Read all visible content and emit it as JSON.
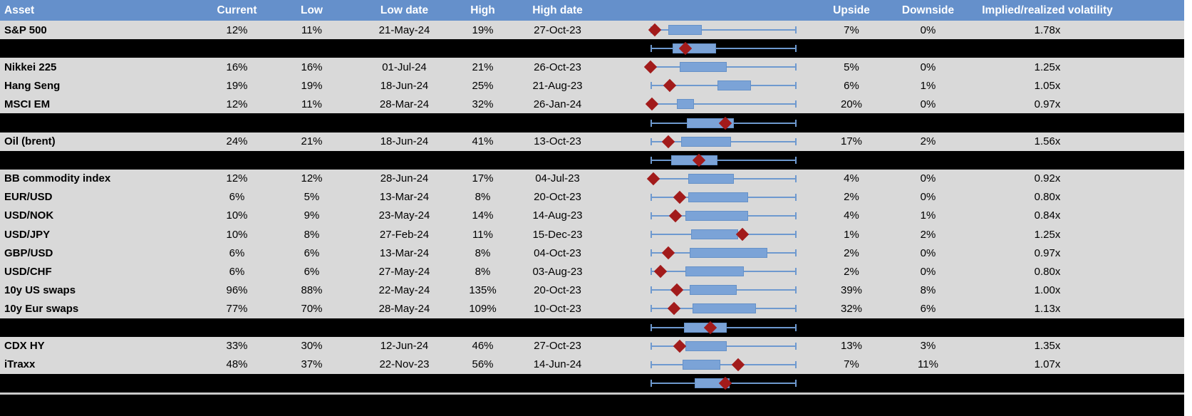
{
  "colors": {
    "header_bg": "#6590CB",
    "row_bg": "#D9D9D9",
    "band_bg": "#000000",
    "box_fill": "#7BA3D7",
    "box_border": "#6591C8",
    "whisker": "#6E99CF",
    "marker": "#A21B1B",
    "divider": "#C9C9C9",
    "text_header": "#FFFFFF",
    "text": "#000000"
  },
  "chart_data": {
    "type": "table",
    "note": "Implied volatility table; each row embeds a normalized horizontal box plot (whiskers = 52-week low..high span 0..1, box = interquartile range, red diamond = current level). Black group-summary rows show aggregate box plots only.",
    "columns": [
      "Asset",
      "Current",
      "Low",
      "Low date",
      "High",
      "High date",
      "",
      "Upside",
      "Downside",
      "Implied/realized volatility"
    ],
    "rows": [
      {
        "kind": "data",
        "asset": "S&P 500",
        "current": "12%",
        "low": "11%",
        "low_date": "21-May-24",
        "high": "19%",
        "high_date": "27-Oct-23",
        "upside": "7%",
        "downside": "0%",
        "implied_realized": "1.78x",
        "box": {
          "whisker": [
            0,
            1
          ],
          "box": [
            0.12,
            0.34
          ],
          "diamond": 0.03
        }
      },
      {
        "kind": "summary",
        "box": {
          "whisker": [
            0,
            1
          ],
          "box": [
            0.15,
            0.44
          ],
          "diamond": 0.24
        }
      },
      {
        "kind": "data",
        "asset": "Nikkei 225",
        "current": "16%",
        "low": "16%",
        "low_date": "01-Jul-24",
        "high": "21%",
        "high_date": "26-Oct-23",
        "upside": "5%",
        "downside": "0%",
        "implied_realized": "1.25x",
        "box": {
          "whisker": [
            0,
            1
          ],
          "box": [
            0.2,
            0.51
          ],
          "diamond": 0.0
        }
      },
      {
        "kind": "data",
        "asset": "Hang Seng",
        "current": "19%",
        "low": "19%",
        "low_date": "18-Jun-24",
        "high": "25%",
        "high_date": "21-Aug-23",
        "upside": "6%",
        "downside": "1%",
        "implied_realized": "1.05x",
        "box": {
          "whisker": [
            0,
            1
          ],
          "box": [
            0.46,
            0.68
          ],
          "diamond": 0.13
        }
      },
      {
        "kind": "data",
        "asset": "MSCI EM",
        "current": "12%",
        "low": "11%",
        "low_date": "28-Mar-24",
        "high": "32%",
        "high_date": "26-Jan-24",
        "upside": "20%",
        "downside": "0%",
        "implied_realized": "0.97x",
        "box": {
          "whisker": [
            0,
            1
          ],
          "box": [
            0.18,
            0.29
          ],
          "diamond": 0.01
        }
      },
      {
        "kind": "summary",
        "box": {
          "whisker": [
            0,
            1
          ],
          "box": [
            0.25,
            0.56
          ],
          "diamond": 0.51
        }
      },
      {
        "kind": "data",
        "asset": "Oil (brent)",
        "current": "24%",
        "low": "21%",
        "low_date": "18-Jun-24",
        "high": "41%",
        "high_date": "13-Oct-23",
        "upside": "17%",
        "downside": "2%",
        "implied_realized": "1.56x",
        "box": {
          "whisker": [
            0,
            1
          ],
          "box": [
            0.21,
            0.54
          ],
          "diamond": 0.12
        }
      },
      {
        "kind": "summary",
        "box": {
          "whisker": [
            0,
            1
          ],
          "box": [
            0.14,
            0.45
          ],
          "diamond": 0.33
        }
      },
      {
        "kind": "data",
        "asset": "BB commodity index",
        "current": "12%",
        "low": "12%",
        "low_date": "28-Jun-24",
        "high": "17%",
        "high_date": "04-Jul-23",
        "upside": "4%",
        "downside": "0%",
        "implied_realized": "0.92x",
        "box": {
          "whisker": [
            0,
            1
          ],
          "box": [
            0.26,
            0.56
          ],
          "diamond": 0.02
        }
      },
      {
        "kind": "data",
        "asset": "EUR/USD",
        "current": "6%",
        "low": "5%",
        "low_date": "13-Mar-24",
        "high": "8%",
        "high_date": "20-Oct-23",
        "upside": "2%",
        "downside": "0%",
        "implied_realized": "0.80x",
        "box": {
          "whisker": [
            0,
            1
          ],
          "box": [
            0.26,
            0.66
          ],
          "diamond": 0.2
        }
      },
      {
        "kind": "data",
        "asset": "USD/NOK",
        "current": "10%",
        "low": "9%",
        "low_date": "23-May-24",
        "high": "14%",
        "high_date": "14-Aug-23",
        "upside": "4%",
        "downside": "1%",
        "implied_realized": "0.84x",
        "box": {
          "whisker": [
            0,
            1
          ],
          "box": [
            0.24,
            0.66
          ],
          "diamond": 0.17
        }
      },
      {
        "kind": "data",
        "asset": "USD/JPY",
        "current": "10%",
        "low": "8%",
        "low_date": "27-Feb-24",
        "high": "11%",
        "high_date": "15-Dec-23",
        "upside": "1%",
        "downside": "2%",
        "implied_realized": "1.25x",
        "box": {
          "whisker": [
            0,
            1
          ],
          "box": [
            0.28,
            0.59
          ],
          "diamond": 0.63
        }
      },
      {
        "kind": "data",
        "asset": "GBP/USD",
        "current": "6%",
        "low": "6%",
        "low_date": "13-Mar-24",
        "high": "8%",
        "high_date": "04-Oct-23",
        "upside": "2%",
        "downside": "0%",
        "implied_realized": "0.97x",
        "box": {
          "whisker": [
            0,
            1
          ],
          "box": [
            0.27,
            0.79
          ],
          "diamond": 0.12
        }
      },
      {
        "kind": "data",
        "asset": "USD/CHF",
        "current": "6%",
        "low": "6%",
        "low_date": "27-May-24",
        "high": "8%",
        "high_date": "03-Aug-23",
        "upside": "2%",
        "downside": "0%",
        "implied_realized": "0.80x",
        "box": {
          "whisker": [
            0,
            1
          ],
          "box": [
            0.24,
            0.63
          ],
          "diamond": 0.07
        }
      },
      {
        "kind": "data",
        "asset": "10y US swaps",
        "current": "96%",
        "low": "88%",
        "low_date": "22-May-24",
        "high": "135%",
        "high_date": "20-Oct-23",
        "upside": "39%",
        "downside": "8%",
        "implied_realized": "1.00x",
        "box": {
          "whisker": [
            0,
            1
          ],
          "box": [
            0.27,
            0.58
          ],
          "diamond": 0.18
        }
      },
      {
        "kind": "data",
        "asset": "10y Eur swaps",
        "current": "77%",
        "low": "70%",
        "low_date": "28-May-24",
        "high": "109%",
        "high_date": "10-Oct-23",
        "upside": "32%",
        "downside": "6%",
        "implied_realized": "1.13x",
        "box": {
          "whisker": [
            0,
            1
          ],
          "box": [
            0.29,
            0.71
          ],
          "diamond": 0.16
        }
      },
      {
        "kind": "summary",
        "box": {
          "whisker": [
            0,
            1
          ],
          "box": [
            0.23,
            0.51
          ],
          "diamond": 0.41
        }
      },
      {
        "kind": "data",
        "asset": "CDX HY",
        "current": "33%",
        "low": "30%",
        "low_date": "12-Jun-24",
        "high": "46%",
        "high_date": "27-Oct-23",
        "upside": "13%",
        "downside": "3%",
        "implied_realized": "1.35x",
        "box": {
          "whisker": [
            0,
            1
          ],
          "box": [
            0.24,
            0.51
          ],
          "diamond": 0.2
        }
      },
      {
        "kind": "data",
        "asset": "iTraxx",
        "current": "48%",
        "low": "37%",
        "low_date": "22-Nov-23",
        "high": "56%",
        "high_date": "14-Jun-24",
        "upside": "7%",
        "downside": "11%",
        "implied_realized": "1.07x",
        "box": {
          "whisker": [
            0,
            1
          ],
          "box": [
            0.22,
            0.47
          ],
          "diamond": 0.6
        }
      },
      {
        "kind": "summary",
        "box": {
          "whisker": [
            0,
            1
          ],
          "box": [
            0.3,
            0.53
          ],
          "diamond": 0.51
        }
      }
    ]
  }
}
